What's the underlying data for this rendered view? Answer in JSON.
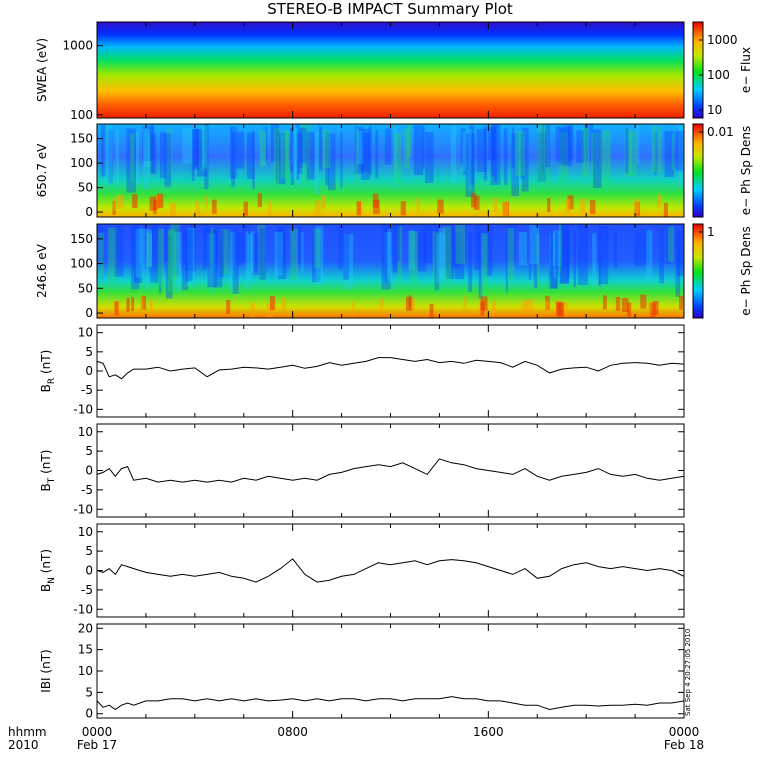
{
  "chart_data": {
    "type": "line",
    "title": "STEREO-B IMPACT Summary Plot",
    "time_axis": {
      "corner_labels": [
        "hhmm",
        "2010"
      ],
      "ticks": [
        {
          "time": "0000",
          "date": "Feb 17"
        },
        {
          "time": "0800",
          "date": ""
        },
        {
          "time": "1600",
          "date": ""
        },
        {
          "time": "0000",
          "date": "Feb 18"
        }
      ],
      "range_hours": [
        0,
        24
      ]
    },
    "spectrograms": [
      {
        "ylabel": "SWEA (eV)",
        "yscale": "log",
        "ylim": [
          90,
          2200
        ],
        "yticks": [
          "1000",
          "100"
        ],
        "colorbar": {
          "label": "e− Flux",
          "ticks": [
            "1000",
            "100",
            "10"
          ],
          "scale": "log"
        }
      },
      {
        "ylabel": "650.7 eV",
        "ylim": [
          -10,
          180
        ],
        "yticks": [
          "150",
          "100",
          "50",
          "0"
        ],
        "colorbar": {
          "label": "e− Ph Sp Dens",
          "ticks": [
            "0.01"
          ]
        }
      },
      {
        "ylabel": "246.6 eV",
        "ylim": [
          -10,
          180
        ],
        "yticks": [
          "150",
          "100",
          "50",
          "0"
        ],
        "colorbar": {
          "label": "e− Ph Sp Dens",
          "ticks": [
            "1"
          ]
        }
      }
    ],
    "series": [
      {
        "ylabel_main": "B",
        "ylabel_sub": "R",
        "ylabel_unit": " (nT)",
        "ylim": [
          -12,
          12
        ],
        "yticks": [
          10,
          5,
          0,
          -5,
          -10
        ],
        "x_hours": [
          0,
          0.25,
          0.5,
          0.75,
          1,
          1.25,
          1.5,
          2,
          2.5,
          3,
          3.5,
          4,
          4.5,
          5,
          5.5,
          6,
          6.5,
          7,
          7.5,
          8,
          8.5,
          9,
          9.5,
          10,
          10.5,
          11,
          11.5,
          12,
          12.5,
          13,
          13.5,
          14,
          14.5,
          15,
          15.5,
          16,
          16.5,
          17,
          17.5,
          18,
          18.5,
          19,
          19.5,
          20,
          20.5,
          21,
          21.5,
          22,
          22.5,
          23,
          23.5,
          24
        ],
        "values": [
          2.5,
          2.0,
          -1.5,
          -1.0,
          -2.0,
          -0.5,
          0.5,
          0.5,
          1.0,
          0.0,
          0.5,
          0.8,
          -1.5,
          0.3,
          0.5,
          1.0,
          0.8,
          0.5,
          1.0,
          1.5,
          0.7,
          1.2,
          2.2,
          1.5,
          2.0,
          2.5,
          3.5,
          3.5,
          3.0,
          2.5,
          3.0,
          2.2,
          2.5,
          2.0,
          2.8,
          2.5,
          2.2,
          1.0,
          2.5,
          1.5,
          -0.5,
          0.5,
          0.8,
          1.0,
          0.0,
          1.5,
          2.0,
          2.2,
          2.0,
          1.5,
          2.0,
          1.8
        ]
      },
      {
        "ylabel_main": "B",
        "ylabel_sub": "T",
        "ylabel_unit": " (nT)",
        "ylim": [
          -12,
          12
        ],
        "yticks": [
          10,
          5,
          0,
          -5,
          -10
        ],
        "x_hours": [
          0,
          0.25,
          0.5,
          0.75,
          1,
          1.25,
          1.5,
          2,
          2.5,
          3,
          3.5,
          4,
          4.5,
          5,
          5.5,
          6,
          6.5,
          7,
          7.5,
          8,
          8.5,
          9,
          9.5,
          10,
          10.5,
          11,
          11.5,
          12,
          12.5,
          13,
          13.5,
          14,
          14.5,
          15,
          15.5,
          16,
          16.5,
          17,
          17.5,
          18,
          18.5,
          19,
          19.5,
          20,
          20.5,
          21,
          21.5,
          22,
          22.5,
          23,
          23.5,
          24
        ],
        "values": [
          -1.0,
          -0.5,
          0.5,
          -1.5,
          0.5,
          1.0,
          -2.5,
          -2.0,
          -3.0,
          -2.5,
          -3.0,
          -2.5,
          -3.0,
          -2.5,
          -3.0,
          -2.0,
          -2.5,
          -1.5,
          -2.0,
          -2.5,
          -2.0,
          -2.5,
          -1.0,
          -0.5,
          0.5,
          1.0,
          1.5,
          1.0,
          2.0,
          0.5,
          -1.0,
          3.0,
          2.0,
          1.5,
          0.5,
          0.0,
          -0.5,
          -1.0,
          0.5,
          -1.5,
          -2.5,
          -1.5,
          -1.0,
          -0.5,
          0.5,
          -1.0,
          -1.5,
          -1.0,
          -2.0,
          -2.5,
          -2.0,
          -1.5
        ]
      },
      {
        "ylabel_main": "B",
        "ylabel_sub": "N",
        "ylabel_unit": " (nT)",
        "ylim": [
          -12,
          12
        ],
        "yticks": [
          10,
          5,
          0,
          -5,
          -10
        ],
        "x_hours": [
          0,
          0.25,
          0.5,
          0.75,
          1,
          1.25,
          1.5,
          2,
          2.5,
          3,
          3.5,
          4,
          4.5,
          5,
          5.5,
          6,
          6.5,
          7,
          7.5,
          8,
          8.5,
          9,
          9.5,
          10,
          10.5,
          11,
          11.5,
          12,
          12.5,
          13,
          13.5,
          14,
          14.5,
          15,
          15.5,
          16,
          16.5,
          17,
          17.5,
          18,
          18.5,
          19,
          19.5,
          20,
          20.5,
          21,
          21.5,
          22,
          22.5,
          23,
          23.5,
          24
        ],
        "values": [
          0.0,
          -0.5,
          0.5,
          -1.0,
          1.5,
          1.0,
          0.5,
          -0.5,
          -1.0,
          -1.5,
          -1.0,
          -1.5,
          -1.0,
          -0.5,
          -1.5,
          -2.0,
          -3.0,
          -1.5,
          0.5,
          3.0,
          -1.0,
          -3.0,
          -2.5,
          -1.5,
          -1.0,
          0.5,
          2.0,
          1.5,
          2.0,
          2.5,
          1.5,
          2.5,
          2.8,
          2.5,
          2.0,
          1.0,
          0.0,
          -1.0,
          0.5,
          -2.0,
          -1.5,
          0.5,
          1.5,
          2.0,
          1.0,
          0.5,
          1.0,
          0.5,
          0.0,
          0.5,
          0.0,
          -1.5
        ]
      },
      {
        "ylabel_main": "IBI",
        "ylabel_sub": "",
        "ylabel_unit": " (nT)",
        "ylim": [
          -1,
          21
        ],
        "yticks": [
          20,
          15,
          10,
          5,
          0
        ],
        "x_hours": [
          0,
          0.25,
          0.5,
          0.75,
          1,
          1.25,
          1.5,
          2,
          2.5,
          3,
          3.5,
          4,
          4.5,
          5,
          5.5,
          6,
          6.5,
          7,
          7.5,
          8,
          8.5,
          9,
          9.5,
          10,
          10.5,
          11,
          11.5,
          12,
          12.5,
          13,
          13.5,
          14,
          14.5,
          15,
          15.5,
          16,
          16.5,
          17,
          17.5,
          18,
          18.5,
          19,
          19.5,
          20,
          20.5,
          21,
          21.5,
          22,
          22.5,
          23,
          23.5,
          24
        ],
        "values": [
          3.0,
          1.5,
          2.0,
          1.0,
          2.0,
          2.5,
          2.0,
          3.0,
          3.0,
          3.5,
          3.5,
          3.0,
          3.5,
          3.0,
          3.5,
          3.0,
          3.5,
          3.0,
          3.2,
          3.5,
          3.0,
          3.5,
          3.0,
          3.5,
          3.5,
          3.0,
          3.5,
          3.5,
          3.0,
          3.5,
          3.5,
          3.5,
          4.0,
          3.5,
          3.5,
          3.0,
          3.0,
          2.5,
          2.0,
          2.0,
          1.0,
          1.5,
          2.0,
          2.0,
          1.8,
          2.0,
          2.0,
          2.2,
          2.0,
          2.5,
          2.5,
          3.0
        ]
      }
    ],
    "timestamp": "Sat Sep  4 20:27:05 2010"
  }
}
